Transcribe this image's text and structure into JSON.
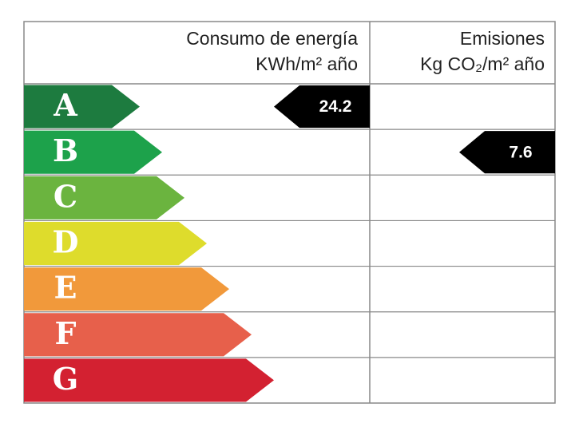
{
  "header": {
    "consumption": [
      "Consumo de energía",
      "KWh/m² año"
    ],
    "emissions": [
      "Emisiones",
      "Kg CO₂/m² año"
    ]
  },
  "ratings": [
    {
      "letter": "A",
      "color": "#1d7b3f"
    },
    {
      "letter": "B",
      "color": "#1da24b"
    },
    {
      "letter": "C",
      "color": "#6bb43f"
    },
    {
      "letter": "D",
      "color": "#dedc2c"
    },
    {
      "letter": "E",
      "color": "#f1993b"
    },
    {
      "letter": "F",
      "color": "#e7604b"
    },
    {
      "letter": "G",
      "color": "#d32131"
    }
  ],
  "consumption": {
    "rating": "A",
    "value": 24.2
  },
  "emissions": {
    "rating": "B",
    "value": 7.6
  }
}
